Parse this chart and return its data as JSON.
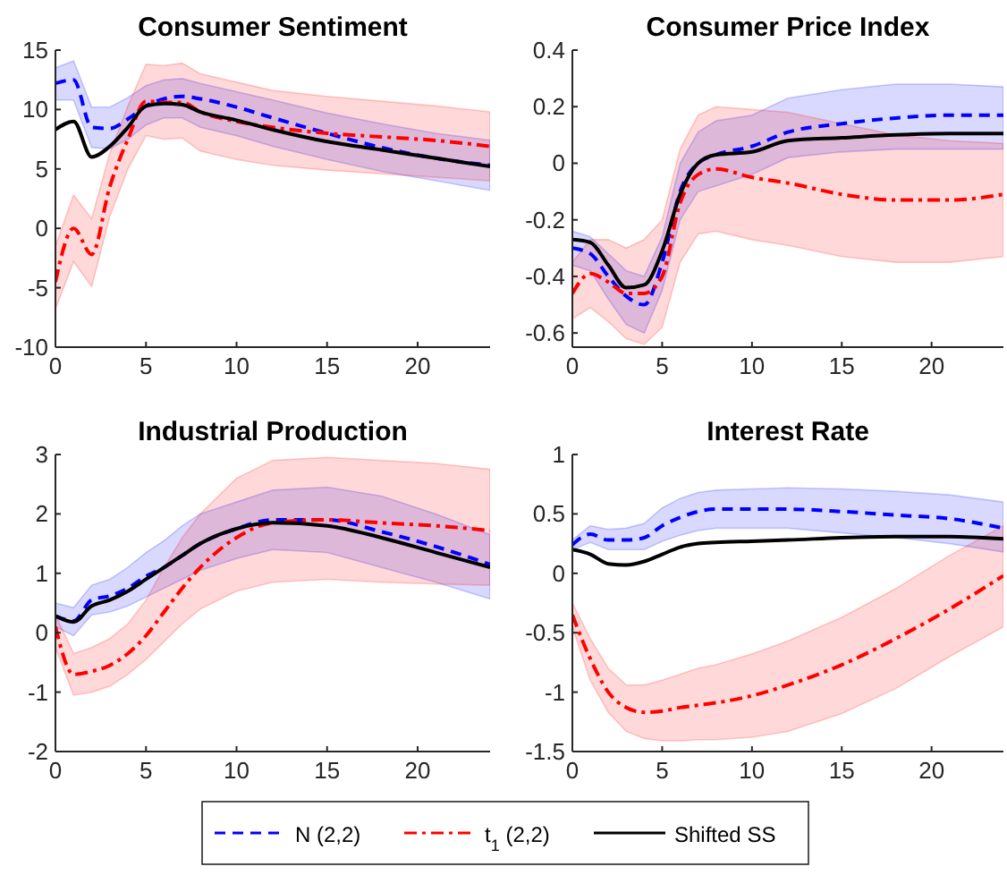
{
  "chart_data": [
    {
      "type": "line",
      "title": "Consumer Sentiment",
      "x": [
        0,
        1,
        2,
        3,
        4,
        5,
        6,
        7,
        8,
        10,
        12,
        15,
        18,
        21,
        24
      ],
      "xlim": [
        0,
        24
      ],
      "xticks": [
        0,
        5,
        10,
        15,
        20
      ],
      "ylim": [
        -10,
        15
      ],
      "yticks": [
        -10,
        -5,
        0,
        5,
        10,
        15
      ],
      "grid": false,
      "legend": "bottom",
      "series": [
        {
          "name": "N (2,2)",
          "color": "#0000ff",
          "line_style": "dashed",
          "values": [
            12.2,
            12.5,
            8.5,
            8.4,
            9.2,
            10.3,
            10.9,
            11.1,
            10.9,
            10.2,
            9.3,
            8.0,
            6.8,
            5.9,
            5.3
          ],
          "lower": [
            10.8,
            10.8,
            6.8,
            6.7,
            7.5,
            8.7,
            9.3,
            9.3,
            8.5,
            7.8,
            6.9,
            5.8,
            4.8,
            4.0,
            3.2
          ],
          "upper": [
            13.5,
            14.1,
            10.2,
            10.2,
            11.0,
            12.0,
            12.5,
            12.6,
            12.2,
            11.5,
            10.8,
            9.7,
            8.8,
            8.0,
            7.4
          ]
        },
        {
          "name": "t$_{1}$ (2,2)",
          "color": "#ff0000",
          "line_style": "dashdot",
          "values": [
            -4.5,
            0,
            -2.2,
            3.5,
            7.5,
            10.7,
            10.6,
            10.6,
            9.8,
            9.0,
            8.5,
            8.0,
            7.7,
            7.4,
            6.9
          ],
          "lower": [
            -6.8,
            -2.8,
            -4.9,
            1,
            5,
            7.8,
            7.5,
            7.6,
            6.5,
            5.8,
            5.3,
            4.9,
            4.6,
            4.3,
            4.0
          ],
          "upper": [
            -1.5,
            2.8,
            0.8,
            6.3,
            10.3,
            13.8,
            13.7,
            13.9,
            13,
            12.3,
            11.6,
            11.1,
            10.7,
            10.3,
            9.8
          ]
        },
        {
          "name": "Shifted SS",
          "color": "#000000",
          "line_style": "solid",
          "values": [
            8.3,
            9.0,
            6.0,
            6.9,
            8.5,
            10.3,
            10.5,
            10.4,
            9.8,
            9.1,
            8.3,
            7.3,
            6.6,
            5.9,
            5.2
          ]
        }
      ]
    },
    {
      "type": "line",
      "title": "Consumer Price Index",
      "x": [
        0,
        1,
        2,
        3,
        4,
        5,
        6,
        7,
        8,
        10,
        12,
        15,
        18,
        21,
        24
      ],
      "xlim": [
        0,
        24
      ],
      "xticks": [
        0,
        5,
        10,
        15,
        20
      ],
      "ylim": [
        -0.65,
        0.4
      ],
      "yticks": [
        -0.6,
        -0.4,
        -0.2,
        0,
        0.2,
        0.4
      ],
      "grid": false,
      "series": [
        {
          "color": "#0000ff",
          "line_style": "dashed",
          "values": [
            -0.3,
            -0.32,
            -0.4,
            -0.47,
            -0.5,
            -0.35,
            -0.1,
            0.0,
            0.03,
            0.06,
            0.11,
            0.14,
            0.16,
            0.17,
            0.17
          ],
          "lower": [
            -0.36,
            -0.38,
            -0.48,
            -0.57,
            -0.6,
            -0.45,
            -0.2,
            -0.1,
            -0.08,
            -0.04,
            0.02,
            0.04,
            0.05,
            0.05,
            0.05
          ],
          "upper": [
            -0.24,
            -0.26,
            -0.32,
            -0.38,
            -0.4,
            -0.26,
            0,
            0.11,
            0.15,
            0.17,
            0.23,
            0.26,
            0.28,
            0.28,
            0.27
          ]
        },
        {
          "color": "#ff0000",
          "line_style": "dashdot",
          "values": [
            -0.46,
            -0.39,
            -0.42,
            -0.46,
            -0.46,
            -0.4,
            -0.14,
            -0.04,
            -0.02,
            -0.05,
            -0.07,
            -0.11,
            -0.13,
            -0.13,
            -0.11
          ],
          "lower": [
            -0.55,
            -0.51,
            -0.56,
            -0.62,
            -0.64,
            -0.58,
            -0.35,
            -0.25,
            -0.24,
            -0.27,
            -0.29,
            -0.33,
            -0.35,
            -0.35,
            -0.33
          ],
          "upper": [
            -0.35,
            -0.27,
            -0.27,
            -0.3,
            -0.27,
            -0.2,
            0.05,
            0.17,
            0.2,
            0.19,
            0.18,
            0.14,
            0.1,
            0.08,
            0.07
          ]
        },
        {
          "color": "#000000",
          "line_style": "solid",
          "values": [
            -0.27,
            -0.28,
            -0.36,
            -0.44,
            -0.43,
            -0.31,
            -0.11,
            0,
            0.03,
            0.04,
            0.08,
            0.09,
            0.1,
            0.105,
            0.105
          ]
        }
      ]
    },
    {
      "type": "line",
      "title": "Industrial Production",
      "x": [
        0,
        1,
        2,
        3,
        4,
        5,
        6,
        7,
        8,
        10,
        12,
        15,
        18,
        21,
        24
      ],
      "xlim": [
        0,
        24
      ],
      "xticks": [
        0,
        5,
        10,
        15,
        20
      ],
      "ylim": [
        -2,
        3
      ],
      "yticks": [
        -2,
        -1,
        0,
        1,
        2,
        3
      ],
      "grid": false,
      "series": [
        {
          "color": "#0000ff",
          "line_style": "dashed",
          "values": [
            0.28,
            0.2,
            0.55,
            0.62,
            0.75,
            0.95,
            1.1,
            1.3,
            1.5,
            1.75,
            1.9,
            1.9,
            1.7,
            1.45,
            1.15
          ],
          "lower": [
            0.1,
            -0.05,
            0.3,
            0.35,
            0.45,
            0.6,
            0.75,
            0.9,
            1.05,
            1.25,
            1.4,
            1.35,
            1.1,
            0.85,
            0.57
          ],
          "upper": [
            0.5,
            0.42,
            0.8,
            0.9,
            1.1,
            1.35,
            1.55,
            1.8,
            2.0,
            2.2,
            2.4,
            2.45,
            2.3,
            2.0,
            1.65
          ]
        },
        {
          "color": "#ff0000",
          "line_style": "dashdot",
          "values": [
            0.1,
            -0.7,
            -0.65,
            -0.55,
            -0.35,
            -0.05,
            0.35,
            0.75,
            1.1,
            1.6,
            1.85,
            1.9,
            1.85,
            1.8,
            1.72
          ],
          "lower": [
            -0.25,
            -1.05,
            -1.0,
            -0.9,
            -0.7,
            -0.45,
            -0.15,
            0.15,
            0.4,
            0.7,
            0.85,
            0.9,
            0.85,
            0.82,
            0.8
          ],
          "upper": [
            0.3,
            -0.35,
            -0.25,
            -0.1,
            0.15,
            0.55,
            1.1,
            1.6,
            2.0,
            2.6,
            2.9,
            2.95,
            2.9,
            2.85,
            2.75
          ]
        },
        {
          "color": "#000000",
          "line_style": "solid",
          "values": [
            0.28,
            0.18,
            0.45,
            0.55,
            0.7,
            0.9,
            1.1,
            1.3,
            1.5,
            1.75,
            1.85,
            1.8,
            1.6,
            1.35,
            1.1
          ]
        }
      ]
    },
    {
      "type": "line",
      "title": "Interest Rate",
      "x": [
        0,
        1,
        2,
        3,
        4,
        5,
        6,
        7,
        8,
        10,
        12,
        15,
        18,
        21,
        24
      ],
      "xlim": [
        0,
        24
      ],
      "xticks": [
        0,
        5,
        10,
        15,
        20
      ],
      "ylim": [
        -1.5,
        1
      ],
      "yticks": [
        -1.5,
        -1,
        -0.5,
        0,
        0.5,
        1
      ],
      "grid": false,
      "series": [
        {
          "color": "#0000ff",
          "line_style": "dashed",
          "values": [
            0.24,
            0.33,
            0.28,
            0.28,
            0.3,
            0.4,
            0.47,
            0.52,
            0.54,
            0.54,
            0.54,
            0.52,
            0.49,
            0.46,
            0.38
          ],
          "lower": [
            0.2,
            0.26,
            0.2,
            0.2,
            0.2,
            0.27,
            0.32,
            0.36,
            0.38,
            0.38,
            0.38,
            0.34,
            0.3,
            0.25,
            0.18
          ],
          "upper": [
            0.28,
            0.4,
            0.37,
            0.38,
            0.42,
            0.55,
            0.63,
            0.68,
            0.7,
            0.71,
            0.72,
            0.71,
            0.69,
            0.66,
            0.6
          ]
        },
        {
          "color": "#ff0000",
          "line_style": "dashdot",
          "values": [
            -0.35,
            -0.72,
            -1.0,
            -1.13,
            -1.17,
            -1.16,
            -1.13,
            -1.11,
            -1.09,
            -1.03,
            -0.94,
            -0.77,
            -0.55,
            -0.3,
            -0.02
          ],
          "lower": [
            -0.45,
            -0.9,
            -1.17,
            -1.33,
            -1.39,
            -1.41,
            -1.41,
            -1.4,
            -1.4,
            -1.38,
            -1.33,
            -1.18,
            -0.97,
            -0.7,
            -0.45
          ],
          "upper": [
            -0.25,
            -0.55,
            -0.8,
            -0.94,
            -0.94,
            -0.9,
            -0.85,
            -0.8,
            -0.77,
            -0.68,
            -0.57,
            -0.37,
            -0.13,
            0.15,
            0.4
          ]
        },
        {
          "color": "#000000",
          "line_style": "solid",
          "values": [
            0.2,
            0.16,
            0.08,
            0.07,
            0.1,
            0.16,
            0.22,
            0.25,
            0.26,
            0.27,
            0.28,
            0.3,
            0.31,
            0.31,
            0.29
          ]
        }
      ]
    }
  ]
}
